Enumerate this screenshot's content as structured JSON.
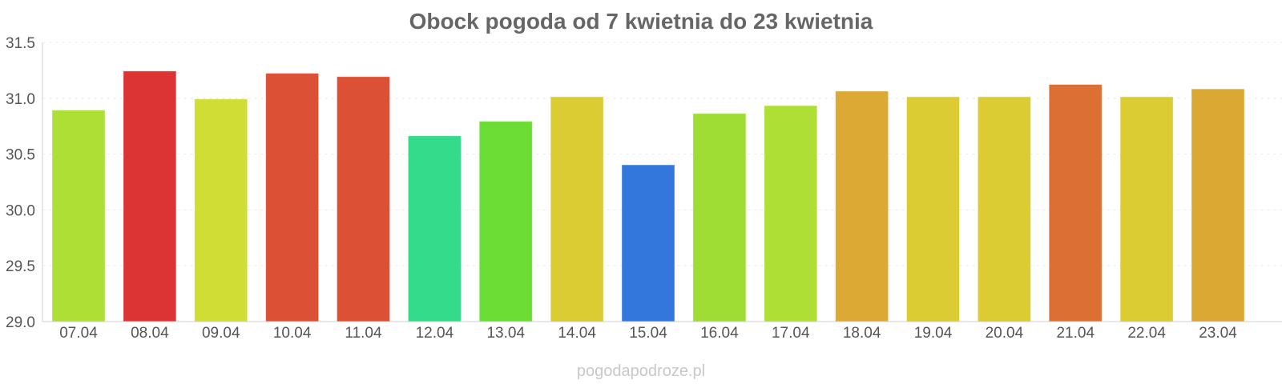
{
  "chart_data": {
    "type": "bar",
    "title": "Obock pogoda od 7 kwietnia do 23 kwietnia",
    "xlabel": "",
    "ylabel": "",
    "ylim": [
      29.0,
      31.5
    ],
    "yticks": [
      "29.0",
      "29.5",
      "30.0",
      "30.5",
      "31.0",
      "31.5"
    ],
    "grid": true,
    "legend": "none",
    "categories": [
      "07.04",
      "08.04",
      "09.04",
      "10.04",
      "11.04",
      "12.04",
      "13.04",
      "14.04",
      "15.04",
      "16.04",
      "17.04",
      "18.04",
      "19.04",
      "20.04",
      "21.04",
      "22.04",
      "23.04"
    ],
    "values": [
      30.89,
      31.24,
      30.99,
      31.22,
      31.19,
      30.66,
      30.79,
      31.01,
      30.4,
      30.86,
      30.93,
      31.06,
      31.01,
      31.01,
      31.12,
      31.01,
      31.08
    ],
    "bar_colors": [
      "#addf34",
      "#dc3434",
      "#cfdd34",
      "#dc5135",
      "#dc5135",
      "#34db8a",
      "#6bdd34",
      "#dccc34",
      "#3477dc",
      "#a0dd34",
      "#addf34",
      "#dcaa34",
      "#dccc34",
      "#dccc34",
      "#dc6f34",
      "#dccc34",
      "#dca834"
    ]
  },
  "watermark": "pogodapodroze.pl"
}
